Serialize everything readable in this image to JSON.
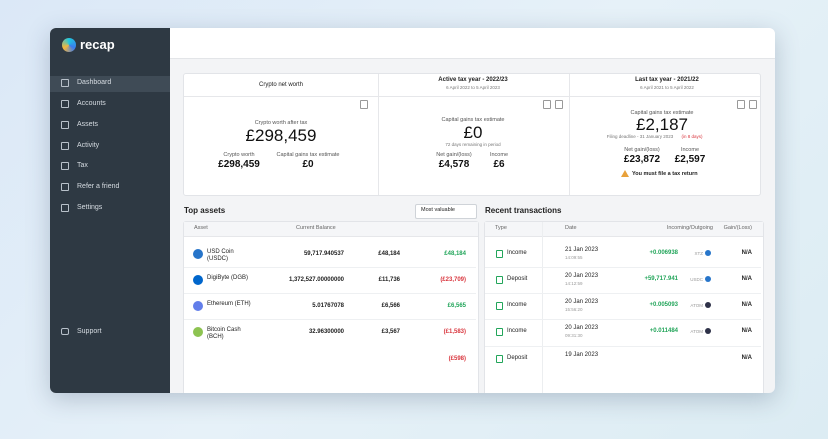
{
  "sidebar": {
    "logo": "recap",
    "nav": [
      "Dashboard",
      "Accounts",
      "Assets",
      "Activity",
      "Tax",
      "Refer a friend",
      "Settings"
    ],
    "support": "Support"
  },
  "summary": {
    "net_worth": {
      "title": "Crypto net worth",
      "after_tax_label": "Crypto worth after tax",
      "after_tax": "£298,459",
      "worth_label": "Crypto worth",
      "worth": "£298,459",
      "cgt_label": "Capital gains tax estimate",
      "cgt": "£0"
    },
    "active_year": {
      "title": "Active tax year - 2022/23",
      "period": "6 April 2022 to 5 April 2023",
      "cgt_label": "Capital gains tax estimate",
      "cgt": "£0",
      "remaining": "72 days remaining in period",
      "gain_label": "Net gain/(loss)",
      "gain": "£4,578",
      "income_label": "Income",
      "income": "£6"
    },
    "last_year": {
      "title": "Last tax year - 2021/22",
      "period": "6 April 2021 to 5 April 2022",
      "cgt_label": "Capital gains tax estimate",
      "cgt": "£2,187",
      "deadline": "Filing deadline - 31 January 2023",
      "deadline_note": "(in 8 days)",
      "gain_label": "Net gain/(loss)",
      "gain": "£23,872",
      "income_label": "Income",
      "income": "£2,597",
      "warning": "You must file a tax return"
    }
  },
  "top_assets": {
    "title": "Top assets",
    "sort": "Most valuable",
    "headers": [
      "Asset",
      "Current Balance"
    ],
    "rows": [
      {
        "asset": "USD Coin (USDC)",
        "balance": "59,717.940537",
        "value": "£48,184",
        "gain": "£48,184"
      },
      {
        "asset": "DigiByte (DGB)",
        "balance": "1,372,527.00000000",
        "value": "£11,736",
        "gain": "(£23,709)"
      },
      {
        "asset": "Ethereum (ETH)",
        "balance": "5.01767078",
        "value": "£6,566",
        "gain": "£6,565"
      },
      {
        "asset": "Bitcoin Cash (BCH)",
        "balance": "32.96300000",
        "value": "£3,567",
        "gain": "(£1,583)"
      },
      {
        "gain": "(£598)"
      }
    ]
  },
  "transactions": {
    "title": "Recent transactions",
    "headers": [
      "Type",
      "Date",
      "Incoming/Outgoing",
      "Gain/(Loss)"
    ],
    "rows": [
      {
        "type": "Income",
        "date": "21 Jan 2023",
        "time": "14:09:55",
        "amount": "+0.006938",
        "unit": "XTZ",
        "gain": "N/A"
      },
      {
        "type": "Deposit",
        "date": "20 Jan 2023",
        "time": "14:12:59",
        "amount": "+59,717.941",
        "unit": "USDC",
        "gain": "N/A"
      },
      {
        "type": "Income",
        "date": "20 Jan 2023",
        "time": "15:56:20",
        "amount": "+0.005093",
        "unit": "ATOM",
        "gain": "N/A"
      },
      {
        "type": "Income",
        "date": "20 Jan 2023",
        "time": "09:31:30",
        "amount": "+0.011484",
        "unit": "ATOM",
        "gain": "N/A"
      },
      {
        "type": "Deposit",
        "date": "19 Jan 2023",
        "gain": "N/A"
      }
    ]
  }
}
